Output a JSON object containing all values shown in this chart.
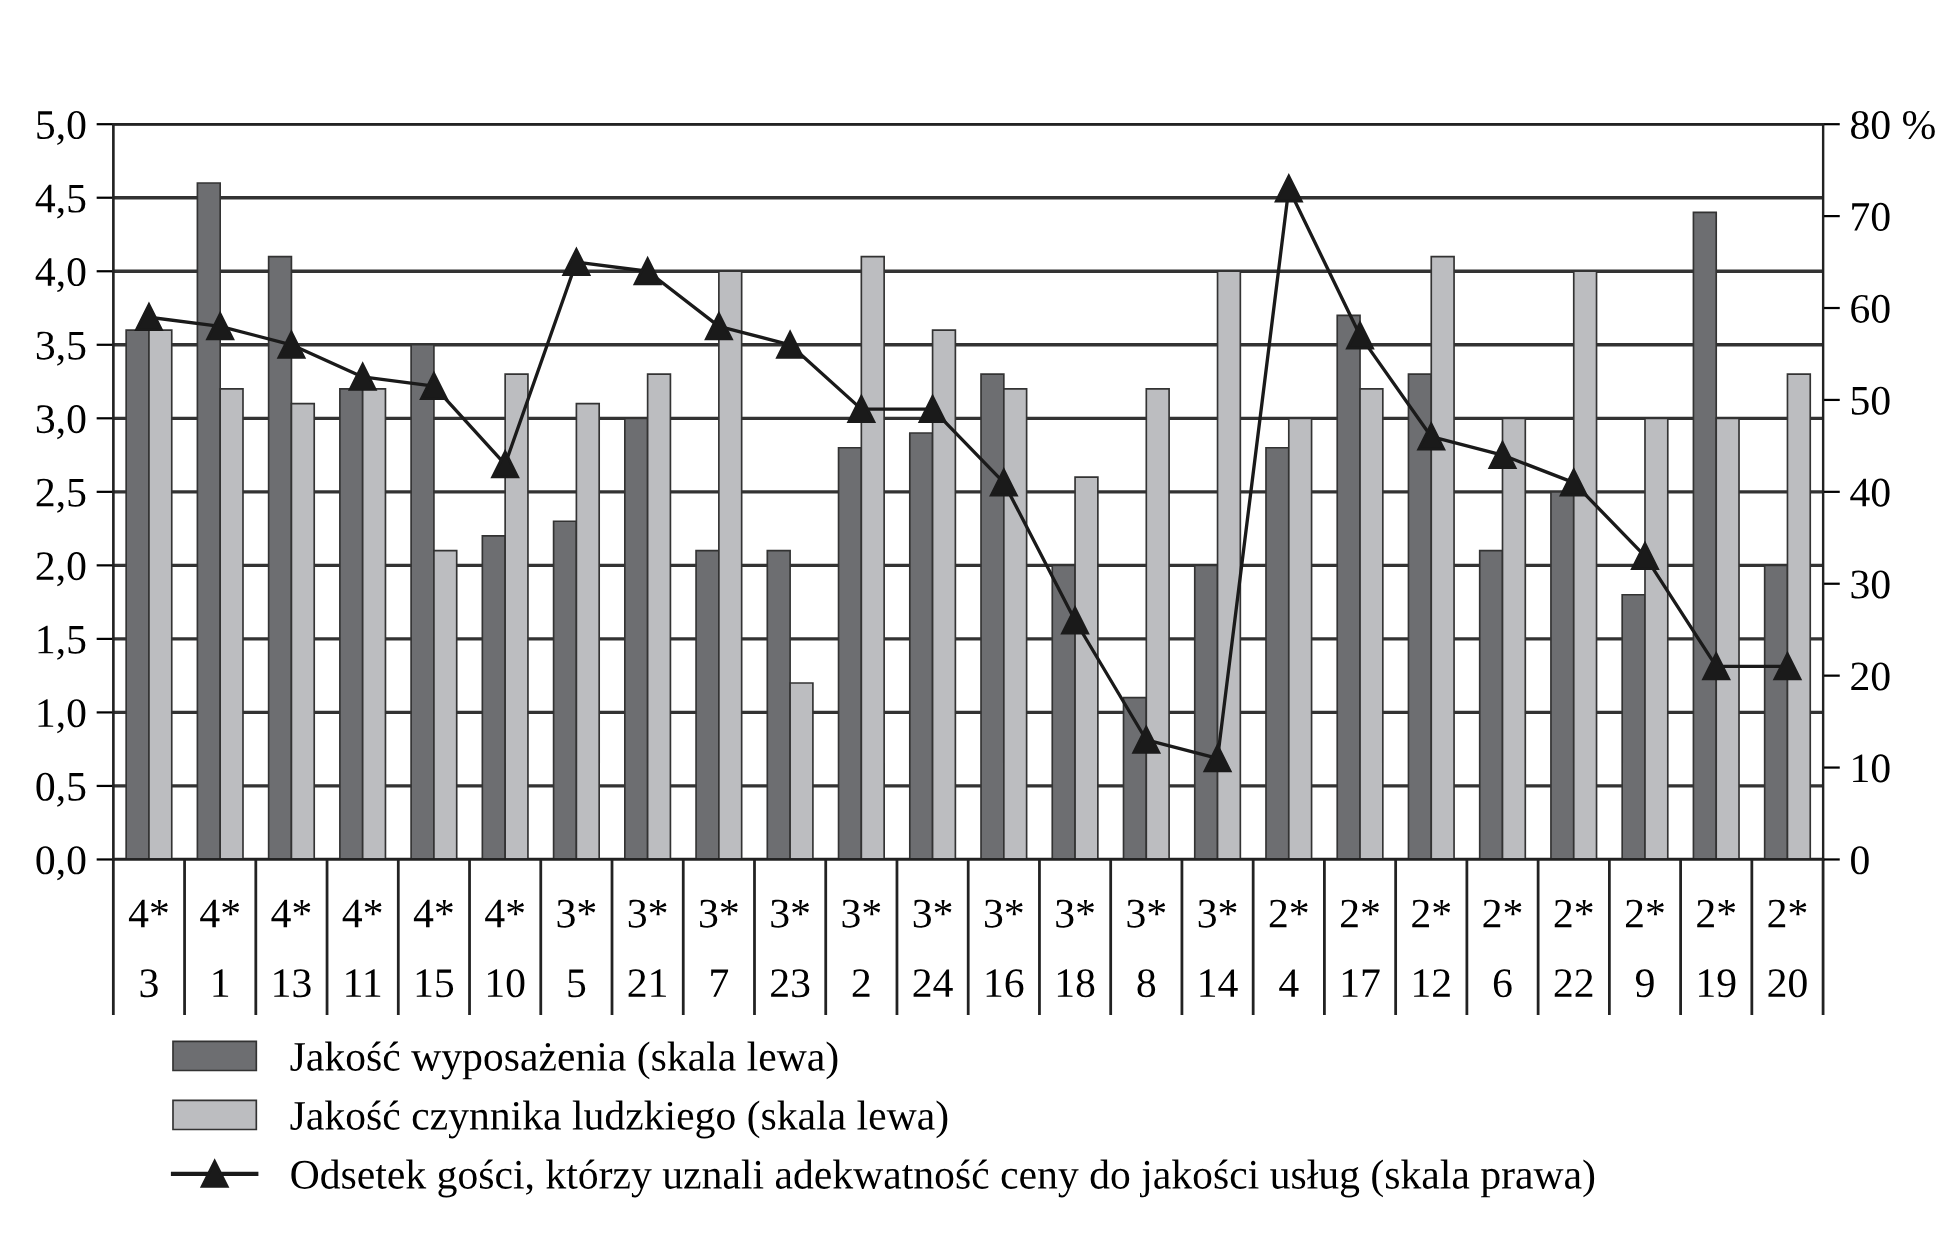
{
  "chart_data": {
    "type": "bar",
    "categories": [
      "4*\n3",
      "4*\n1",
      "4*\n13",
      "4*\n11",
      "4*\n15",
      "4*\n10",
      "3*\n5",
      "3*\n21",
      "3*\n7",
      "3*\n23",
      "3*\n2",
      "3*\n24",
      "3*\n16",
      "3*\n18",
      "3*\n8",
      "3*\n14",
      "2*\n4",
      "2*\n17",
      "2*\n12",
      "2*\n6",
      "2*\n22",
      "2*\n9",
      "2*\n19",
      "2*\n20"
    ],
    "series": [
      {
        "name": "Jakość wyposażenia (skala lewa)",
        "color": "#6d6e71",
        "values": [
          3.6,
          4.6,
          4.1,
          3.2,
          3.5,
          2.2,
          2.3,
          3.0,
          2.1,
          2.1,
          2.8,
          2.9,
          3.3,
          2.0,
          1.1,
          2.0,
          2.8,
          3.7,
          3.3,
          2.1,
          2.5,
          1.8,
          4.4,
          2.0
        ]
      },
      {
        "name": "Jakość czynnika ludzkiego (skala lewa)",
        "color": "#bcbdc0",
        "values": [
          3.6,
          3.2,
          3.1,
          3.2,
          2.1,
          3.3,
          3.1,
          3.3,
          4.0,
          1.2,
          4.1,
          3.6,
          3.2,
          2.6,
          3.2,
          4.0,
          3.0,
          3.2,
          4.1,
          3.0,
          4.0,
          3.0,
          3.0,
          3.3
        ]
      },
      {
        "name": "Odsetek gości, którzy uznali adekwatność ceny do jakości usług (skala prawa)",
        "type": "line",
        "axis": "y2",
        "color": "#1a1a1a",
        "marker": "triangle",
        "line_style": "solid",
        "values": [
          59,
          58,
          56,
          52.5,
          51.5,
          43,
          65,
          64,
          58,
          56,
          49,
          49,
          41,
          26,
          13,
          11,
          73,
          57,
          46,
          44,
          41,
          33,
          21,
          21
        ]
      }
    ],
    "ylim": [
      0,
      5
    ],
    "yticks": [
      {
        "value": 0,
        "label": "0,0"
      },
      {
        "value": 0.5,
        "label": "0,5"
      },
      {
        "value": 1,
        "label": "1,0"
      },
      {
        "value": 1.5,
        "label": "1,5"
      },
      {
        "value": 2,
        "label": "2,0"
      },
      {
        "value": 2.5,
        "label": "2,5"
      },
      {
        "value": 3,
        "label": "3,0"
      },
      {
        "value": 3.5,
        "label": "3,5"
      },
      {
        "value": 4,
        "label": "4,0"
      },
      {
        "value": 4.5,
        "label": "4,5"
      },
      {
        "value": 5,
        "label": "5,0"
      }
    ],
    "y2lim": [
      0,
      80
    ],
    "y2ticks": [
      0,
      10,
      20,
      30,
      40,
      50,
      60,
      70,
      {
        "value": 80,
        "label": "80 %"
      }
    ],
    "grid": "y",
    "legend": "bottom"
  }
}
